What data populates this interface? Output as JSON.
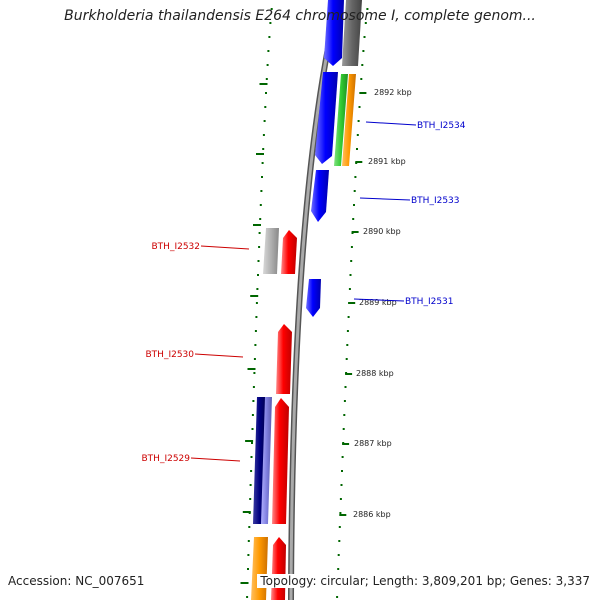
{
  "title": "Burkholderia thailandensis E264 chromosome I, complete genom...",
  "accession": "Accession: NC_007651",
  "footer": "Topology: circular; Length: 3,809,201 bp; Genes: 3,337",
  "tick_labels": [
    "2892 kbp",
    "2891 kbp",
    "2890 kbp",
    "2889 kbp",
    "2888 kbp",
    "2887 kbp",
    "2886 kbp"
  ],
  "gene_labels": [
    {
      "text": "BTH_I2534",
      "strand": "forward",
      "color": "#0000cc"
    },
    {
      "text": "BTH_I2533",
      "strand": "forward",
      "color": "#0000cc"
    },
    {
      "text": "BTH_I2531",
      "strand": "forward",
      "color": "#0000cc"
    },
    {
      "text": "BTH_I2532",
      "strand": "reverse",
      "color": "#cc0000"
    },
    {
      "text": "BTH_I2530",
      "strand": "reverse",
      "color": "#cc0000"
    },
    {
      "text": "BTH_I2529",
      "strand": "reverse",
      "color": "#cc0000"
    }
  ],
  "colors": {
    "forward_cds": "#0000ff",
    "reverse_cds": "#ff0000",
    "backbone": "#777777",
    "ticks": "#006600",
    "gray_feature": "#aaaaaa",
    "orange_feature": "#ff9900",
    "green_feature": "#33cc33",
    "navy_feature": "#000080"
  }
}
